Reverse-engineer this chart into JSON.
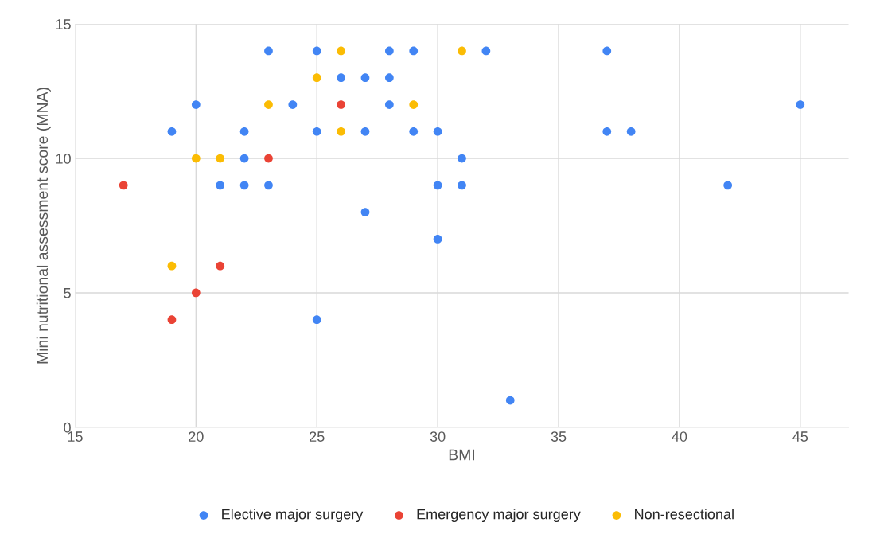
{
  "chart_data": {
    "type": "scatter",
    "xlabel": "BMI",
    "ylabel": "Mini nutritional assessment score (MNA)",
    "xlim": [
      15,
      47
    ],
    "xticks": [
      15,
      20,
      25,
      30,
      35,
      40,
      45
    ],
    "ylim": [
      0,
      15
    ],
    "yticks": [
      0,
      5,
      10,
      15
    ],
    "grid": true,
    "legend": "bottom",
    "marker": "circle",
    "series": [
      {
        "name": "Elective major surgery",
        "color": "#4285f4",
        "x": [
          19,
          20,
          21,
          22,
          22,
          22,
          23,
          23,
          24,
          25,
          25,
          25,
          26,
          27,
          27,
          27,
          28,
          28,
          28,
          29,
          29,
          30,
          30,
          30,
          31,
          31,
          32,
          33,
          37,
          37,
          38,
          42,
          45
        ],
        "values": [
          11,
          12,
          9,
          11,
          10,
          9,
          14,
          9,
          12,
          14,
          11,
          4,
          13,
          13,
          11,
          8,
          14,
          13,
          12,
          14,
          11,
          11,
          9,
          7,
          10,
          9,
          14,
          1,
          14,
          11,
          11,
          9,
          12
        ]
      },
      {
        "name": "Emergency major surgery",
        "color": "#ea4335",
        "x": [
          17,
          19,
          20,
          21,
          23,
          26
        ],
        "values": [
          9,
          4,
          5,
          6,
          10,
          12
        ]
      },
      {
        "name": "Non-resectional",
        "color": "#fbbc04",
        "x": [
          19,
          20,
          21,
          23,
          25,
          26,
          26,
          29,
          31
        ],
        "values": [
          6,
          10,
          10,
          12,
          13,
          14,
          11,
          12,
          14
        ]
      }
    ]
  }
}
